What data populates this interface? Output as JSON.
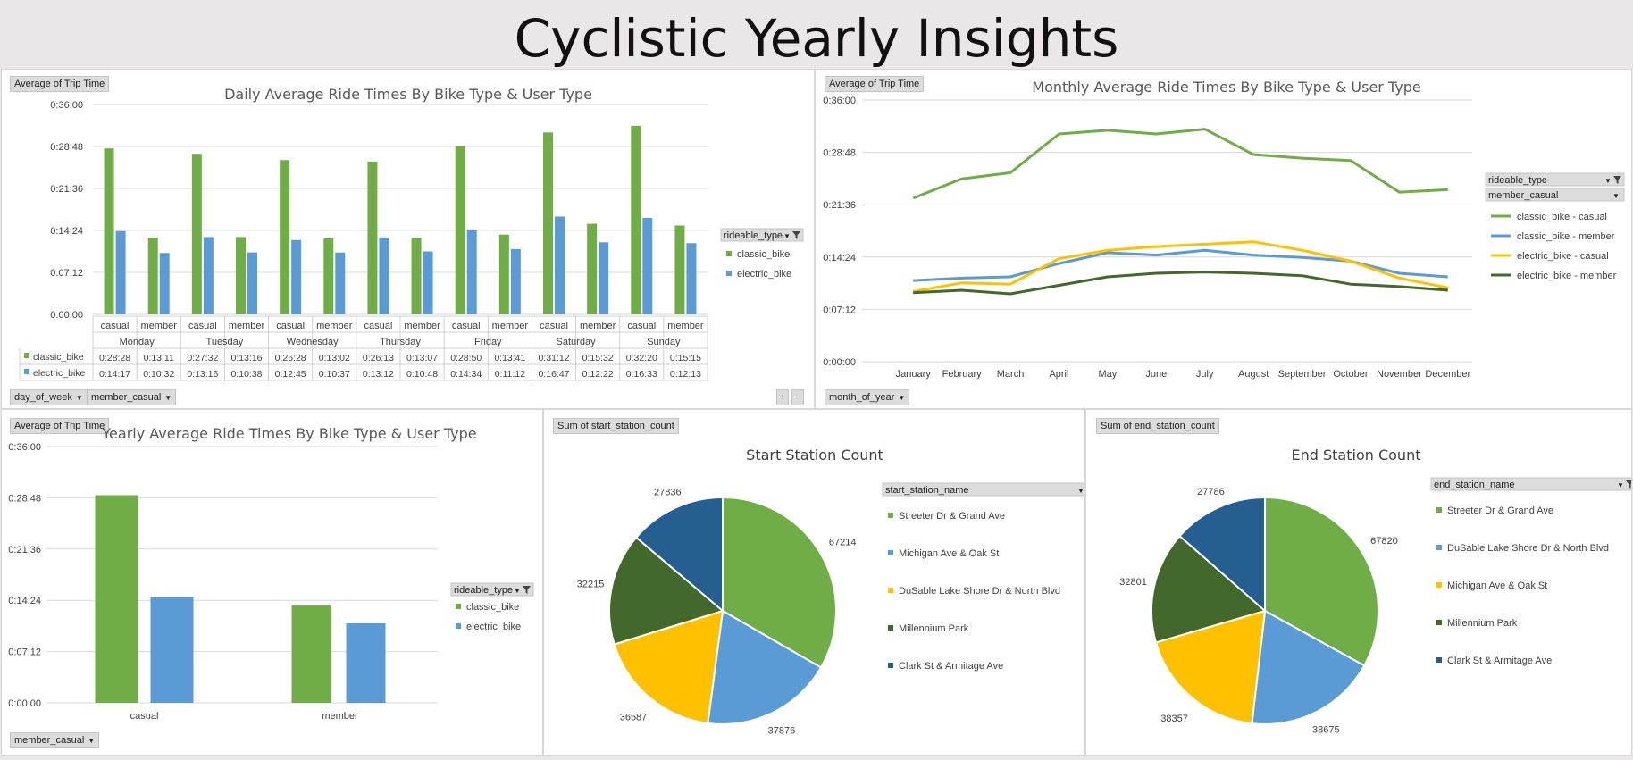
{
  "page_title": "Cyclistic Yearly Insights",
  "colors": {
    "green": "#70ad47",
    "blue": "#5b9bd5",
    "gold": "#ffc000",
    "darkgreen": "#43682b",
    "navy": "#255e91",
    "grid": "#d9d9d9"
  },
  "daily": {
    "value_button": "Average of Trip Time",
    "filter_buttons": [
      "day_of_week",
      "member_casual"
    ],
    "legend_title": "rideable_type",
    "expand_controls": [
      "+",
      "−"
    ],
    "chart_data": {
      "type": "bar",
      "title": "Daily  Average Ride Times By Bike Type & User Type",
      "y_ticks": [
        "0:00:00",
        "0:07:12",
        "0:14:24",
        "0:21:36",
        "0:28:48",
        "0:36:00"
      ],
      "ylim_seconds": [
        0,
        2160
      ],
      "groups": [
        "Monday",
        "Tuesday",
        "Wednesday",
        "Thursday",
        "Friday",
        "Saturday",
        "Sunday"
      ],
      "subcategories": [
        "casual",
        "member"
      ],
      "series": [
        {
          "name": "classic_bike",
          "values": [
            "0:28:28",
            "0:13:11",
            "0:27:32",
            "0:13:16",
            "0:26:28",
            "0:13:02",
            "0:26:13",
            "0:13:07",
            "0:28:50",
            "0:13:41",
            "0:31:12",
            "0:15:32",
            "0:32:20",
            "0:15:15"
          ]
        },
        {
          "name": "electric_bike",
          "values": [
            "0:14:17",
            "0:10:32",
            "0:13:16",
            "0:10:38",
            "0:12:45",
            "0:10:37",
            "0:13:12",
            "0:10:48",
            "0:14:34",
            "0:11:12",
            "0:16:47",
            "0:12:22",
            "0:16:33",
            "0:12:13"
          ]
        }
      ],
      "grid": true,
      "legend": "right"
    }
  },
  "monthly": {
    "value_button": "Average of Trip Time",
    "filter_buttons": [
      "month_of_year"
    ],
    "legend_filters": [
      "rideable_type",
      "member_casual"
    ],
    "chart_data": {
      "type": "line",
      "title": "Monthly  Average Ride Times By Bike Type & User Type",
      "y_ticks": [
        "0:00:00",
        "0:07:12",
        "0:14:24",
        "0:21:36",
        "0:28:48",
        "0:36:00"
      ],
      "ylim_seconds": [
        0,
        2160
      ],
      "categories": [
        "January",
        "February",
        "March",
        "April",
        "May",
        "June",
        "July",
        "August",
        "September",
        "October",
        "November",
        "December"
      ],
      "series": [
        {
          "name": "classic_bike - casual",
          "values": [
            "0:22:30",
            "0:25:10",
            "0:26:00",
            "0:31:20",
            "0:31:50",
            "0:31:20",
            "0:32:00",
            "0:28:30",
            "0:28:00",
            "0:27:40",
            "0:23:20",
            "0:23:40"
          ]
        },
        {
          "name": "classic_bike - member",
          "values": [
            "0:11:10",
            "0:11:30",
            "0:11:40",
            "0:13:30",
            "0:15:00",
            "0:14:40",
            "0:15:20",
            "0:14:40",
            "0:14:20",
            "0:13:50",
            "0:12:10",
            "0:11:40"
          ]
        },
        {
          "name": "electric_bike - casual",
          "values": [
            "0:09:40",
            "0:10:50",
            "0:10:40",
            "0:14:10",
            "0:15:20",
            "0:15:50",
            "0:16:10",
            "0:16:30",
            "0:15:20",
            "0:13:50",
            "0:11:30",
            "0:10:10"
          ]
        },
        {
          "name": "electric_bike - member",
          "values": [
            "0:09:30",
            "0:09:50",
            "0:09:20",
            "0:10:30",
            "0:11:40",
            "0:12:10",
            "0:12:20",
            "0:12:10",
            "0:11:50",
            "0:10:40",
            "0:10:20",
            "0:09:50"
          ]
        }
      ],
      "grid": true,
      "legend": "right"
    }
  },
  "yearly": {
    "value_button": "Average of Trip Time",
    "filter_buttons": [
      "member_casual"
    ],
    "legend_title": "rideable_type",
    "chart_data": {
      "type": "bar",
      "title": "Yearly  Average Ride Times By Bike Type & User Type",
      "y_ticks": [
        "0:00:00",
        "0:07:12",
        "0:14:24",
        "0:21:36",
        "0:28:48",
        "0:36:00"
      ],
      "ylim_seconds": [
        0,
        2160
      ],
      "categories": [
        "casual",
        "member"
      ],
      "series": [
        {
          "name": "classic_bike",
          "values": [
            "0:29:10",
            "0:13:40"
          ]
        },
        {
          "name": "electric_bike",
          "values": [
            "0:14:50",
            "0:11:10"
          ]
        }
      ],
      "grid": true,
      "legend": "right"
    }
  },
  "start_station": {
    "value_button": "Sum of start_station_count",
    "legend_title": "start_station_name",
    "chart_data": {
      "type": "pie",
      "title": "Start Station Count",
      "labels": [
        "Streeter Dr & Grand Ave",
        "Michigan Ave & Oak St",
        "DuSable Lake Shore Dr & North Blvd",
        "Millennium Park",
        "Clark St & Armitage Ave"
      ],
      "values": [
        67214,
        37876,
        36587,
        32215,
        27836
      ],
      "legend": "right"
    }
  },
  "end_station": {
    "value_button": "Sum of end_station_count",
    "legend_title": "end_station_name",
    "chart_data": {
      "type": "pie",
      "title": "End Station Count",
      "labels": [
        "Streeter Dr & Grand Ave",
        "DuSable Lake Shore Dr & North Blvd",
        "Michigan Ave & Oak St",
        "Millennium Park",
        "Clark St & Armitage Ave"
      ],
      "values": [
        67820,
        38675,
        38357,
        32801,
        27786
      ],
      "legend": "right"
    }
  }
}
